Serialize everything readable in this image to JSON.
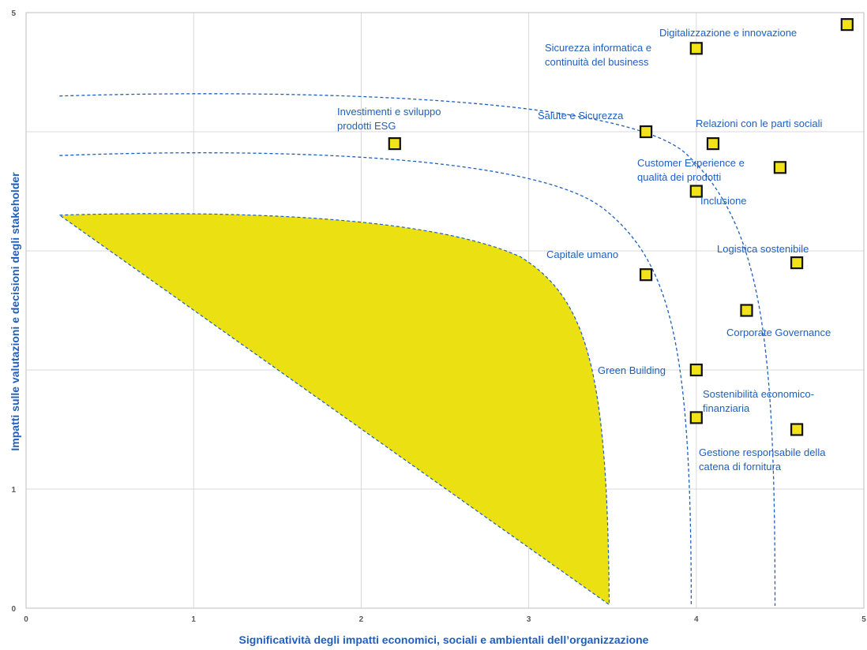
{
  "chart_data": {
    "type": "scatter",
    "title": "",
    "xlabel": "Significatività degli impatti economici, sociali e ambientali dell’organizzazione",
    "ylabel": "Impatti sulle valutazioni e decisioni degli stakeholder",
    "xlim": [
      0,
      5
    ],
    "ylim": [
      0,
      5
    ],
    "x_ticks": [
      "0",
      "1",
      "2",
      "3",
      "4",
      "5"
    ],
    "y_ticks": [
      "0",
      "1",
      "5"
    ],
    "grid": true,
    "legend": "none",
    "colors": {
      "marker": "#F2E21A",
      "marker_border": "#111111",
      "threshold": "#1F5FBF",
      "area": "#EAE012",
      "label": "#1F5FBF",
      "grid": "#D9D9D9"
    },
    "points": [
      {
        "label_lines": [
          "Digitalizzazione  e innovazione"
        ],
        "x": 4.9,
        "y": 4.9
      },
      {
        "label_lines": [
          "Sicurezza informatica e",
          "continuità del business"
        ],
        "x": 4.0,
        "y": 4.7
      },
      {
        "label_lines": [
          "Investimenti  e sviluppo",
          "prodotti ESG"
        ],
        "x": 2.2,
        "y": 3.9
      },
      {
        "label_lines": [
          "Salute e Sicurezza"
        ],
        "x": 3.7,
        "y": 4.0
      },
      {
        "label_lines": [
          "Relazioni con le parti sociali"
        ],
        "x": 4.1,
        "y": 3.9
      },
      {
        "label_lines": [
          "Customer Experience e",
          "qualità dei prodotti"
        ],
        "x": 4.5,
        "y": 3.7
      },
      {
        "label_lines": [
          "Inclusione"
        ],
        "x": 4.0,
        "y": 3.5
      },
      {
        "label_lines": [
          "Logistica sostenibile"
        ],
        "x": 4.6,
        "y": 2.9
      },
      {
        "label_lines": [
          "Capitale umano"
        ],
        "x": 3.7,
        "y": 2.8
      },
      {
        "label_lines": [
          "Corporate Governance"
        ],
        "x": 4.3,
        "y": 2.5
      },
      {
        "label_lines": [
          "Green Building"
        ],
        "x": 4.0,
        "y": 2.0
      },
      {
        "label_lines": [
          "Sostenibilità economico-",
          "finanziaria"
        ],
        "x": 4.0,
        "y": 1.6
      },
      {
        "label_lines": [
          "Gestione responsabile della",
          "catena di fornitura"
        ],
        "x": 4.6,
        "y": 1.5
      }
    ]
  }
}
